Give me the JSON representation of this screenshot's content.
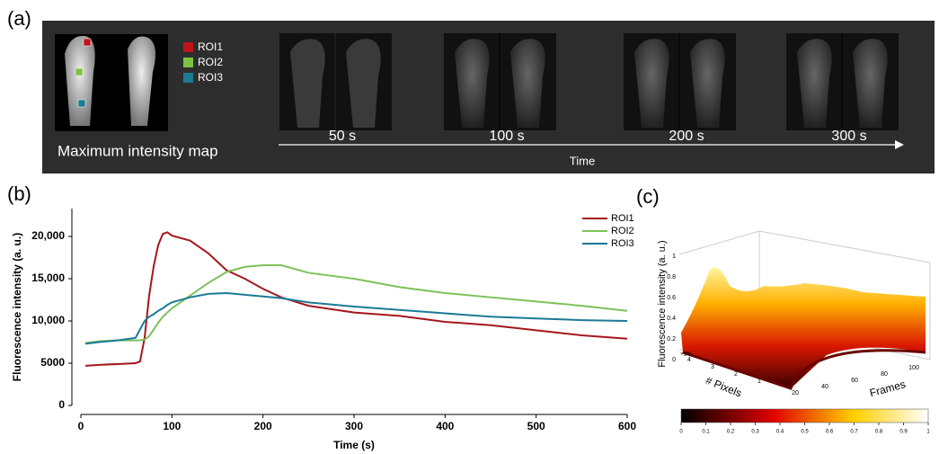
{
  "panel_a": {
    "label": "(a)",
    "legend": [
      {
        "name": "ROI1",
        "color": "#c0141c"
      },
      {
        "name": "ROI2",
        "color": "#7cc242"
      },
      {
        "name": "ROI3",
        "color": "#1b7a94"
      }
    ],
    "map_caption": "Maximum intensity map",
    "frames": [
      "50 s",
      "100 s",
      "200 s",
      "300 s"
    ],
    "axis_label": "Time"
  },
  "panel_b": {
    "label": "(b)"
  },
  "chart_data": {
    "type": "line",
    "xlabel": "Time (s)",
    "ylabel": "Fluorescence intensity (a. u.)",
    "x": [
      5,
      20,
      40,
      60,
      65,
      70,
      75,
      80,
      85,
      90,
      95,
      100,
      120,
      140,
      160,
      180,
      200,
      220,
      250,
      300,
      350,
      400,
      450,
      500,
      550,
      600
    ],
    "series": [
      {
        "name": "ROI1",
        "color": "#a5161c",
        "values": [
          4700,
          4800,
          4900,
          5000,
          5200,
          8000,
          13000,
          16500,
          19000,
          20300,
          20500,
          20100,
          19500,
          18000,
          16000,
          15000,
          13800,
          12800,
          11800,
          11000,
          10600,
          9900,
          9500,
          8900,
          8300,
          7900
        ]
      },
      {
        "name": "ROI2",
        "color": "#7cc25a",
        "values": [
          7400,
          7600,
          7700,
          7700,
          7700,
          7800,
          8200,
          9000,
          9800,
          10500,
          11000,
          11500,
          13000,
          14500,
          15800,
          16400,
          16600,
          16600,
          15700,
          15000,
          14000,
          13300,
          12800,
          12300,
          11800,
          11200
        ]
      },
      {
        "name": "ROI3",
        "color": "#1c7a96",
        "values": [
          7300,
          7500,
          7700,
          8000,
          9000,
          10000,
          10500,
          10800,
          11200,
          11500,
          11900,
          12200,
          12800,
          13200,
          13300,
          13100,
          12900,
          12700,
          12200,
          11700,
          11300,
          10900,
          10500,
          10300,
          10100,
          10000
        ]
      }
    ],
    "xlim": [
      0,
      600
    ],
    "xticks": [
      0,
      100,
      200,
      300,
      400,
      500,
      600
    ],
    "ylim": [
      0,
      23300
    ],
    "yticks": [
      0,
      5000,
      {
        "value": 10000,
        "label": "10,000"
      },
      {
        "value": 15000,
        "label": "15,000"
      },
      {
        "value": 20000,
        "label": "20,000"
      }
    ],
    "legend": "upper right"
  },
  "panel_c": {
    "label": "(c)",
    "zlabel": "Fluorescence intensity (a. u.)",
    "xlabel": "# Pixels",
    "ylabel": "Frames",
    "zticks": [
      0,
      0.2,
      0.4,
      0.6,
      0.8,
      1
    ],
    "pixel_ticks": [
      1,
      2,
      3,
      4
    ],
    "pixel_exponent": "×10⁴",
    "frame_ticks": [
      20,
      40,
      60,
      80,
      100
    ],
    "colorbar_ticks": [
      0,
      0.1,
      0.2,
      0.3,
      0.4,
      0.5,
      0.6,
      0.7,
      0.8,
      0.9,
      1
    ]
  }
}
